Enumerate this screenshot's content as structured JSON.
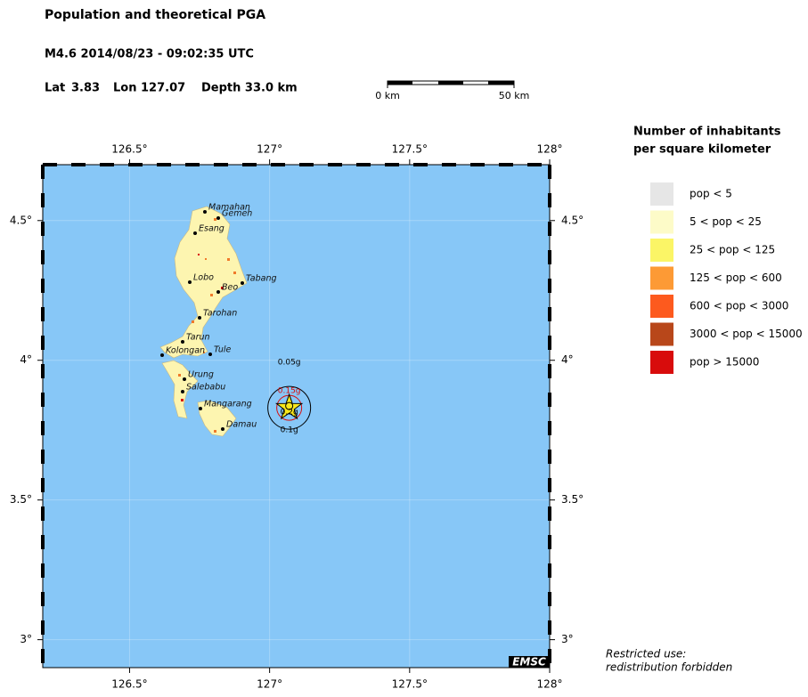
{
  "header": {
    "title": "Population and theoretical PGA",
    "event": "M4.6  2014/08/23 - 09:02:35 UTC",
    "lat_label": "Lat",
    "lat": 3.83,
    "lon_label": "Lon",
    "lon": 127.07,
    "depth": "Depth  33.0 km"
  },
  "scale_bar": {
    "start": "0 km",
    "end": "50 km"
  },
  "map": {
    "xlim": [
      126.19,
      128
    ],
    "ylim": [
      2.9,
      4.7
    ],
    "xticks": [
      {
        "value": 126.5,
        "label": "126.5°"
      },
      {
        "value": 127,
        "label": "127°"
      },
      {
        "value": 127.5,
        "label": "127.5°"
      },
      {
        "value": 128,
        "label": "128°"
      }
    ],
    "yticks": [
      {
        "value": 3,
        "label": "3°"
      },
      {
        "value": 3.5,
        "label": "3.5°"
      },
      {
        "value": 4,
        "label": "4°"
      },
      {
        "value": 4.5,
        "label": "4.5°"
      }
    ],
    "towns": [
      "Mamahan",
      "Gemeh",
      "Esang",
      "Lobo",
      "Tabang",
      "Beo",
      "Tarohan",
      "Tarun",
      "Kolongan",
      "Tule",
      "Urung",
      "Salebabu",
      "Mangarang",
      "Damau"
    ],
    "pga_labels": [
      "0.05g",
      "0.15g",
      "0.2g",
      "0.1g"
    ],
    "credit": "EMSC"
  },
  "legend": {
    "title": [
      "Number of inhabitants",
      "per square kilometer"
    ],
    "items": [
      {
        "label": "pop < 5",
        "color": "#e6e6e6"
      },
      {
        "label": "5 < pop < 25",
        "color": "#fdfbc8"
      },
      {
        "label": "25 < pop < 125",
        "color": "#fbf566"
      },
      {
        "label": "125 < pop < 600",
        "color": "#fd9a35"
      },
      {
        "label": "600 < pop < 3000",
        "color": "#fd5a1e"
      },
      {
        "label": "3000 < pop < 15000",
        "color": "#b8471a"
      },
      {
        "label": "pop > 15000",
        "color": "#d80c0c"
      }
    ]
  },
  "notice": [
    "Restricted use:",
    "redistribution forbidden"
  ]
}
